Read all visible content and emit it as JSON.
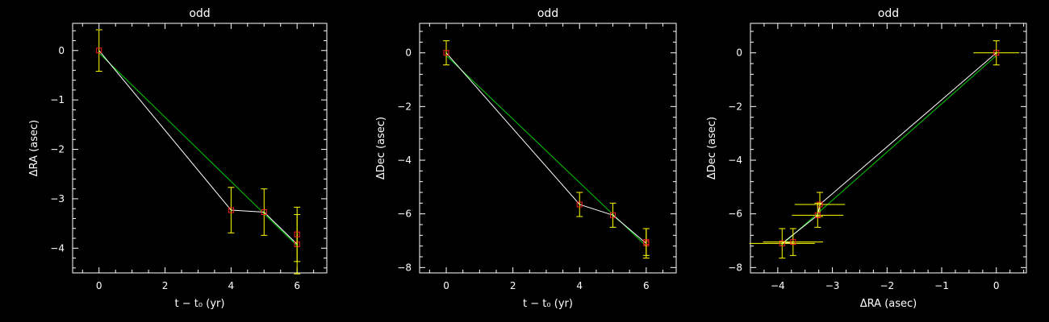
{
  "colors": {
    "background": "#000000",
    "axes": "#ffffff",
    "data_line": "#ffffff",
    "fit_line": "#00cc00",
    "marker": "#ff2020",
    "error_bar": "#ffff00"
  },
  "chart_data": [
    {
      "type": "line",
      "title": "odd",
      "xlabel": "t − t₀ (yr)",
      "ylabel": "ΔRA (asec)",
      "xlim": [
        -0.8,
        6.9
      ],
      "ylim": [
        -4.5,
        0.55
      ],
      "xticks": [
        0,
        2,
        4,
        6
      ],
      "yticks": [
        0,
        -1,
        -2,
        -3,
        -4
      ],
      "grid": false,
      "points": [
        {
          "x": 0,
          "y": 0.0,
          "yerr": 0.42
        },
        {
          "x": 4,
          "y": -3.23,
          "yerr": 0.46
        },
        {
          "x": 5,
          "y": -3.27,
          "yerr": 0.47
        },
        {
          "x": 6,
          "y": -3.92,
          "yerr": 0.6
        },
        {
          "x": 6,
          "y": -3.72,
          "yerr": 0.55
        }
      ],
      "fit": [
        [
          0,
          -0.05
        ],
        [
          6,
          -3.95
        ]
      ]
    },
    {
      "type": "line",
      "title": "odd",
      "xlabel": "t − t₀ (yr)",
      "ylabel": "ΔDec (asec)",
      "xlim": [
        -0.8,
        6.9
      ],
      "ylim": [
        -8.2,
        1.1
      ],
      "xticks": [
        0,
        2,
        4,
        6
      ],
      "yticks": [
        0,
        -2,
        -4,
        -6,
        -8
      ],
      "grid": false,
      "points": [
        {
          "x": 0,
          "y": 0.0,
          "yerr": 0.45
        },
        {
          "x": 4,
          "y": -5.65,
          "yerr": 0.45
        },
        {
          "x": 5,
          "y": -6.05,
          "yerr": 0.45
        },
        {
          "x": 6,
          "y": -7.1,
          "yerr": 0.55
        },
        {
          "x": 6,
          "y": -7.05,
          "yerr": 0.5
        }
      ],
      "fit": [
        [
          0,
          -0.1
        ],
        [
          6,
          -7.2
        ]
      ]
    },
    {
      "type": "scatter",
      "title": "odd",
      "xlabel": "ΔRA (asec)",
      "ylabel": "ΔDec (asec)",
      "xlim": [
        -4.5,
        0.55
      ],
      "ylim": [
        -8.2,
        1.1
      ],
      "xticks": [
        -4,
        -3,
        -2,
        -1,
        0
      ],
      "yticks": [
        0,
        -2,
        -4,
        -6,
        -8
      ],
      "grid": false,
      "points": [
        {
          "x": 0,
          "y": 0.0,
          "xerr": 0.42,
          "yerr": 0.45
        },
        {
          "x": -3.23,
          "y": -5.65,
          "xerr": 0.46,
          "yerr": 0.45
        },
        {
          "x": -3.27,
          "y": -6.05,
          "xerr": 0.47,
          "yerr": 0.45
        },
        {
          "x": -3.92,
          "y": -7.1,
          "xerr": 0.6,
          "yerr": 0.55
        },
        {
          "x": -3.72,
          "y": -7.05,
          "xerr": 0.55,
          "yerr": 0.5
        }
      ],
      "fit": [
        [
          0,
          -0.1
        ],
        [
          -3.95,
          -7.2
        ]
      ]
    }
  ]
}
